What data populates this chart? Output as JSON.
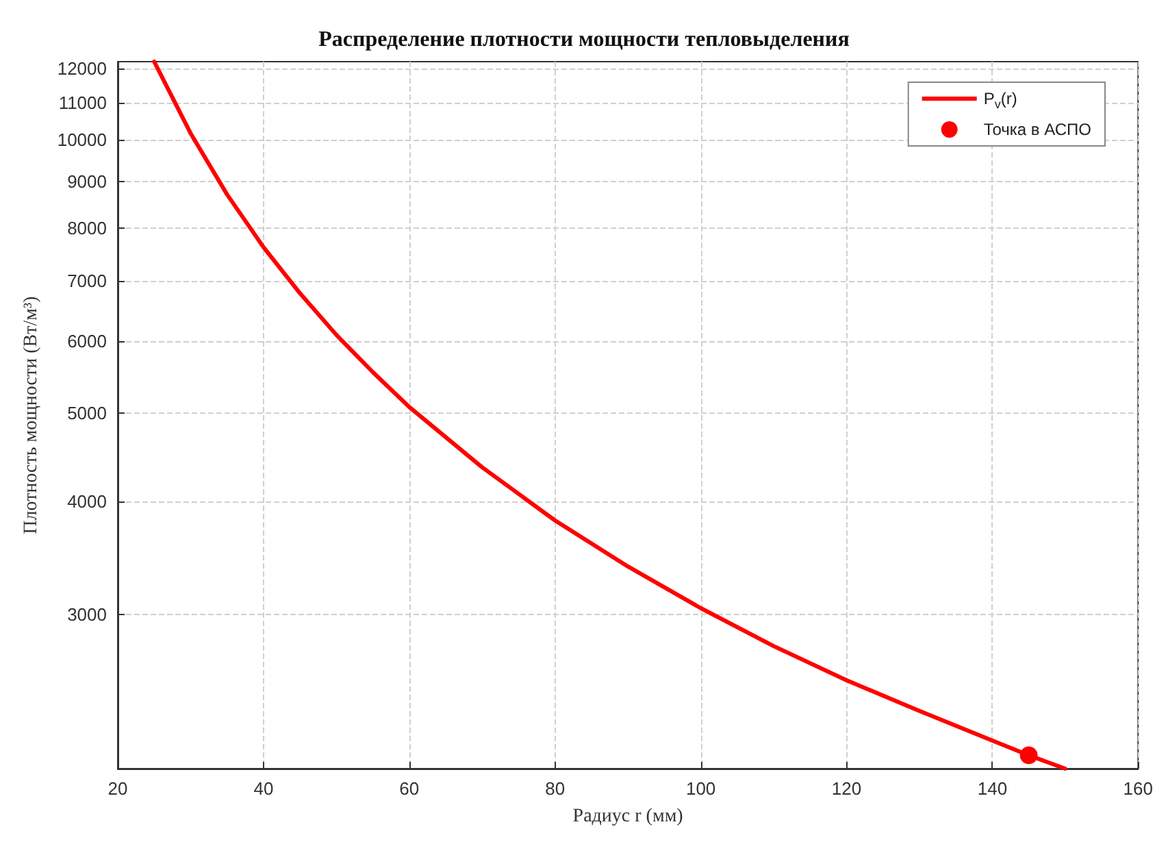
{
  "chart_data": {
    "type": "line",
    "title": "Распределение плотности мощности тепловыделения",
    "xlabel": "Радиус r (мм)",
    "ylabel": "Плотность мощности (Вт/м³)",
    "xlim": [
      20,
      160
    ],
    "xticks": [
      20,
      40,
      60,
      80,
      100,
      120,
      140,
      160
    ],
    "ylim": [
      2030,
      12200
    ],
    "yticks": [
      3000,
      4000,
      5000,
      6000,
      7000,
      8000,
      9000,
      10000,
      11000,
      12000
    ],
    "log": "y",
    "grid": true,
    "legend": "top right",
    "series": [
      {
        "name": "P$_{v}$(r)",
        "type": "line",
        "color": "#ff0000",
        "marker": "none",
        "line_style": "solid",
        "x": [
          25,
          30,
          35,
          40,
          45,
          50,
          55,
          60,
          70,
          80,
          90,
          100,
          110,
          120,
          130,
          140,
          145,
          150
        ],
        "values": [
          12200,
          10170,
          8710,
          7620,
          6780,
          6100,
          5550,
          5080,
          4360,
          3810,
          3390,
          3050,
          2770,
          2540,
          2350,
          2180,
          2100,
          2030
        ]
      },
      {
        "name": "Точка в АСПО",
        "type": "scatter",
        "color": "#ff0000",
        "marker": "circle",
        "x": [
          145
        ],
        "values": [
          2100
        ]
      }
    ]
  }
}
